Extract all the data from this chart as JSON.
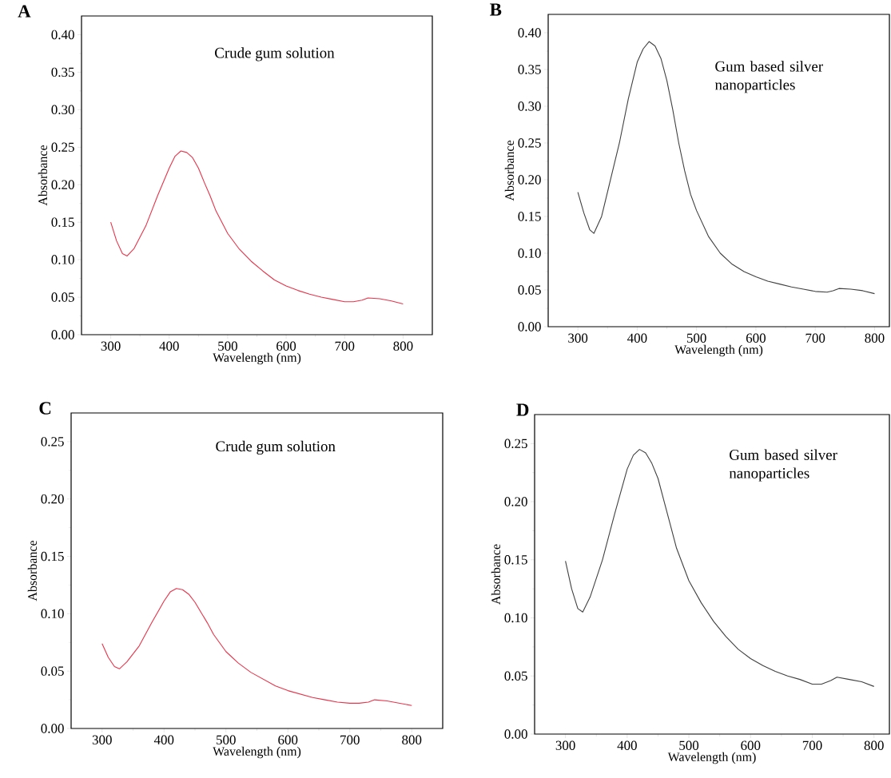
{
  "chart_data": [
    {
      "type": "line",
      "title": "A",
      "xlabel": "Wavelength (nm)",
      "ylabel": "Absorbance",
      "annotations": [
        "Crude gum solution"
      ],
      "color": "#e8344a",
      "line_style": "solid",
      "x": [
        300,
        310,
        320,
        328,
        340,
        360,
        380,
        400,
        410,
        420,
        430,
        440,
        450,
        460,
        470,
        480,
        500,
        520,
        540,
        560,
        580,
        600,
        620,
        640,
        660,
        680,
        700,
        715,
        730,
        740,
        760,
        780,
        800
      ],
      "values": [
        0.15,
        0.125,
        0.108,
        0.105,
        0.115,
        0.145,
        0.185,
        0.222,
        0.238,
        0.245,
        0.243,
        0.236,
        0.222,
        0.203,
        0.185,
        0.165,
        0.135,
        0.114,
        0.098,
        0.085,
        0.073,
        0.065,
        0.059,
        0.054,
        0.05,
        0.047,
        0.044,
        0.044,
        0.046,
        0.049,
        0.048,
        0.045,
        0.041
      ],
      "xlim": [
        250,
        850
      ],
      "ylim": [
        0,
        0.425
      ],
      "xticks": [
        300,
        400,
        500,
        600,
        700,
        800
      ],
      "yticks": [
        {
          "value": 0,
          "label": "0.00"
        },
        {
          "value": 0.05,
          "label": "0.05"
        },
        {
          "value": 0.1,
          "label": "0.10"
        },
        {
          "value": 0.15,
          "label": "0.15"
        },
        {
          "value": 0.2,
          "label": "0.20"
        },
        {
          "value": 0.25,
          "label": "0.25"
        },
        {
          "value": 0.3,
          "label": "0.30"
        },
        {
          "value": 0.35,
          "label": "0.35"
        },
        {
          "value": 0.4,
          "label": "0.40"
        }
      ]
    },
    {
      "type": "line",
      "title": "B",
      "xlabel": "Wavelength (nm)",
      "ylabel": "Absorbance",
      "annotations": [
        "Gum based silver nanoparticles"
      ],
      "color": "#404040",
      "line_style": "solid",
      "x": [
        300,
        310,
        320,
        327,
        340,
        355,
        370,
        385,
        400,
        410,
        420,
        430,
        440,
        450,
        460,
        470,
        480,
        490,
        500,
        520,
        540,
        560,
        580,
        600,
        620,
        640,
        660,
        680,
        700,
        720,
        730,
        740,
        760,
        780,
        800
      ],
      "values": [
        0.183,
        0.155,
        0.132,
        0.127,
        0.15,
        0.2,
        0.25,
        0.31,
        0.36,
        0.378,
        0.388,
        0.382,
        0.365,
        0.335,
        0.295,
        0.25,
        0.212,
        0.18,
        0.158,
        0.123,
        0.1,
        0.085,
        0.075,
        0.068,
        0.062,
        0.058,
        0.054,
        0.051,
        0.048,
        0.047,
        0.049,
        0.052,
        0.051,
        0.049,
        0.045
      ],
      "xlim": [
        250,
        825
      ],
      "ylim": [
        0,
        0.425
      ],
      "xticks": [
        300,
        400,
        500,
        600,
        700,
        800
      ],
      "yticks": [
        {
          "value": 0,
          "label": "0.00"
        },
        {
          "value": 0.05,
          "label": "0.05"
        },
        {
          "value": 0.1,
          "label": "0.10"
        },
        {
          "value": 0.15,
          "label": "0.15"
        },
        {
          "value": 0.2,
          "label": "0.20"
        },
        {
          "value": 0.25,
          "label": "0.25"
        },
        {
          "value": 0.3,
          "label": "0.30"
        },
        {
          "value": 0.35,
          "label": "0.35"
        },
        {
          "value": 0.4,
          "label": "0.40"
        }
      ]
    },
    {
      "type": "line",
      "title": "C",
      "xlabel": "Wavelength (nm)",
      "ylabel": "Absorbance",
      "annotations": [
        "Crude gum solution"
      ],
      "color": "#e8344a",
      "line_style": "solid",
      "x": [
        300,
        310,
        320,
        328,
        340,
        360,
        380,
        400,
        410,
        420,
        430,
        440,
        450,
        460,
        470,
        480,
        500,
        520,
        540,
        560,
        580,
        600,
        620,
        640,
        660,
        680,
        700,
        715,
        730,
        740,
        760,
        780,
        800
      ],
      "values": [
        0.074,
        0.062,
        0.054,
        0.052,
        0.058,
        0.072,
        0.092,
        0.111,
        0.119,
        0.122,
        0.121,
        0.117,
        0.11,
        0.101,
        0.092,
        0.082,
        0.067,
        0.057,
        0.049,
        0.043,
        0.037,
        0.033,
        0.03,
        0.027,
        0.025,
        0.023,
        0.022,
        0.022,
        0.023,
        0.025,
        0.024,
        0.022,
        0.02
      ],
      "xlim": [
        250,
        850
      ],
      "ylim": [
        0,
        0.275
      ],
      "xticks": [
        300,
        400,
        500,
        600,
        700,
        800
      ],
      "yticks": [
        {
          "value": 0,
          "label": "0.00"
        },
        {
          "value": 0.05,
          "label": "0.05"
        },
        {
          "value": 0.1,
          "label": "0.10"
        },
        {
          "value": 0.15,
          "label": "0.15"
        },
        {
          "value": 0.2,
          "label": "0.20"
        },
        {
          "value": 0.25,
          "label": "0.25"
        }
      ]
    },
    {
      "type": "line",
      "title": "D",
      "xlabel": "Wavelength (nm)",
      "ylabel": "Absorbance",
      "annotations": [
        "Gum based silver nanoparticles"
      ],
      "color": "#404040",
      "line_style": "solid",
      "x": [
        300,
        310,
        320,
        328,
        340,
        360,
        380,
        400,
        410,
        420,
        430,
        440,
        450,
        460,
        470,
        480,
        500,
        520,
        540,
        560,
        580,
        600,
        620,
        640,
        660,
        680,
        700,
        715,
        730,
        740,
        760,
        780,
        800
      ],
      "values": [
        0.149,
        0.125,
        0.108,
        0.105,
        0.118,
        0.15,
        0.19,
        0.228,
        0.24,
        0.245,
        0.242,
        0.233,
        0.22,
        0.2,
        0.18,
        0.16,
        0.132,
        0.113,
        0.097,
        0.084,
        0.073,
        0.065,
        0.059,
        0.054,
        0.05,
        0.047,
        0.043,
        0.043,
        0.046,
        0.049,
        0.047,
        0.045,
        0.041
      ],
      "xlim": [
        250,
        825
      ],
      "ylim": [
        0,
        0.275
      ],
      "xticks": [
        300,
        400,
        500,
        600,
        700,
        800
      ],
      "yticks": [
        {
          "value": 0,
          "label": "0.00"
        },
        {
          "value": 0.05,
          "label": "0.05"
        },
        {
          "value": 0.1,
          "label": "0.10"
        },
        {
          "value": 0.15,
          "label": "0.15"
        },
        {
          "value": 0.2,
          "label": "0.20"
        },
        {
          "value": 0.25,
          "label": "0.25"
        }
      ]
    }
  ]
}
